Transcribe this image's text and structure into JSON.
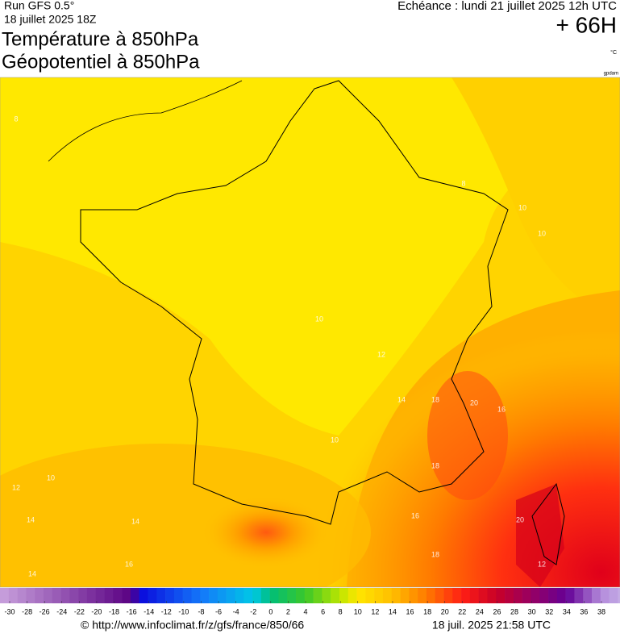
{
  "header": {
    "run": "Run GFS 0.5°",
    "date": "18 juillet 2025 18Z",
    "title1": "Température à 850hPa",
    "title2": "Géopotentiel à 850hPa",
    "echeance": "Echéance : lundi 21 juillet 2025 12h UTC",
    "hour": "+ 66H",
    "unit": "°C",
    "credit": "gpdam"
  },
  "map": {
    "contour_labels": [
      "8",
      "8",
      "10",
      "10",
      "10",
      "12",
      "14",
      "18",
      "20",
      "16",
      "10",
      "18",
      "12",
      "10",
      "14",
      "14",
      "16",
      "14",
      "16",
      "18",
      "20",
      "12"
    ]
  },
  "colorbar": {
    "ticks": [
      -30,
      -28,
      -26,
      -24,
      -22,
      -20,
      -18,
      -16,
      -14,
      -12,
      -10,
      -8,
      -6,
      -4,
      -2,
      0,
      2,
      4,
      6,
      8,
      10,
      12,
      14,
      16,
      18,
      20,
      22,
      24,
      26,
      28,
      30,
      32,
      34,
      36,
      38
    ]
  },
  "footer": {
    "url": "© http://www.infoclimat.fr/z/gfs/france/850/66",
    "stamp": "18 juil. 2025 21:58 UTC"
  }
}
